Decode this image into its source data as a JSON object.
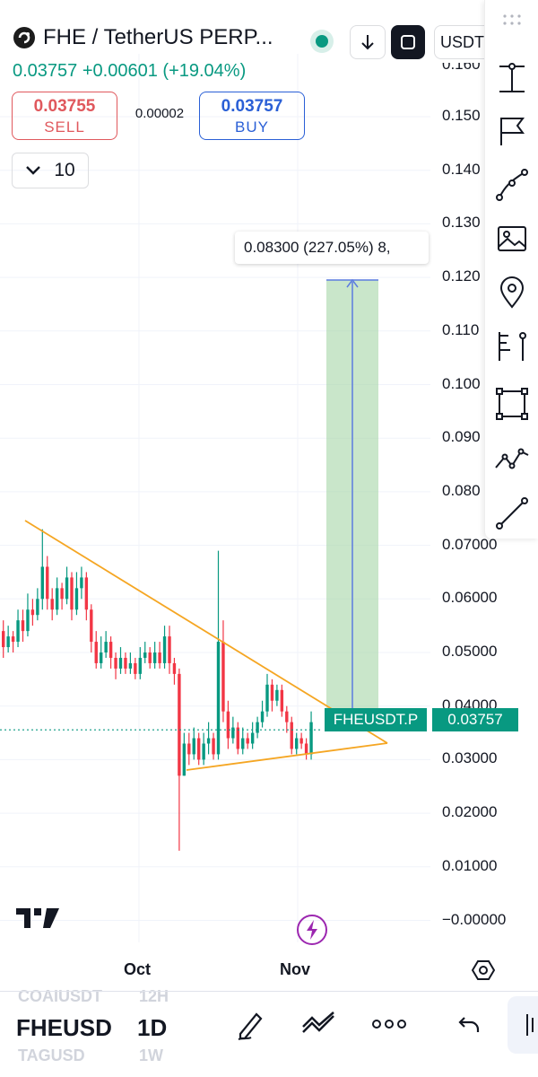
{
  "header": {
    "symbol_title": "FHE / TetherUS PERP...",
    "price": "0.03757",
    "change": "+0.00601",
    "change_pct": "(+19.04%)",
    "currency_pill": "USDT"
  },
  "trade": {
    "sell_price": "0.03755",
    "sell_label": "SELL",
    "spread": "0.00002",
    "buy_price": "0.03757",
    "buy_label": "BUY",
    "quantity": "10"
  },
  "chart": {
    "price_axis": [
      "0.150",
      "0.140",
      "0.130",
      "0.120",
      "0.110",
      "0.100",
      "0.090",
      "0.080",
      "0.07000",
      "0.06000",
      "0.05000",
      "0.04000",
      "0.03000",
      "0.02000",
      "0.01000",
      "−0.00000"
    ],
    "top_axis_partial": "0.160",
    "time_labels": [
      "Oct",
      "Nov"
    ],
    "measure_label": "0.08300 (227.05%) 8,",
    "symbol_tag": "FHEUSDT.P",
    "current_price_tag": "0.03757"
  },
  "chart_data": {
    "type": "candlestick",
    "annotations": [
      "descending trendline",
      "ascending trendline",
      "price range measurement 0.08300 (227.05%)"
    ],
    "ylim": [
      0,
      0.16
    ],
    "current_price": 0.03757,
    "colors": {
      "up": "#089981",
      "down": "#f23645",
      "trendline": "#f5a623",
      "measure_fill": "#a5d6a7",
      "measure_line": "#5c7ce0"
    }
  },
  "bottom": {
    "symbols": [
      "COAIUSDT",
      "FHEUSD",
      "TAGUSD"
    ],
    "intervals": [
      "12H",
      "1D",
      "1W"
    ],
    "icons": [
      "draw-icon",
      "indicators-icon",
      "more-icon",
      "undo-icon"
    ]
  },
  "toolbar_icons": [
    "ruler-icon",
    "flag-icon",
    "path-icon",
    "image-icon",
    "pin-icon",
    "fib-icon",
    "rectangle-icon",
    "pattern-icon",
    "line-icon"
  ]
}
